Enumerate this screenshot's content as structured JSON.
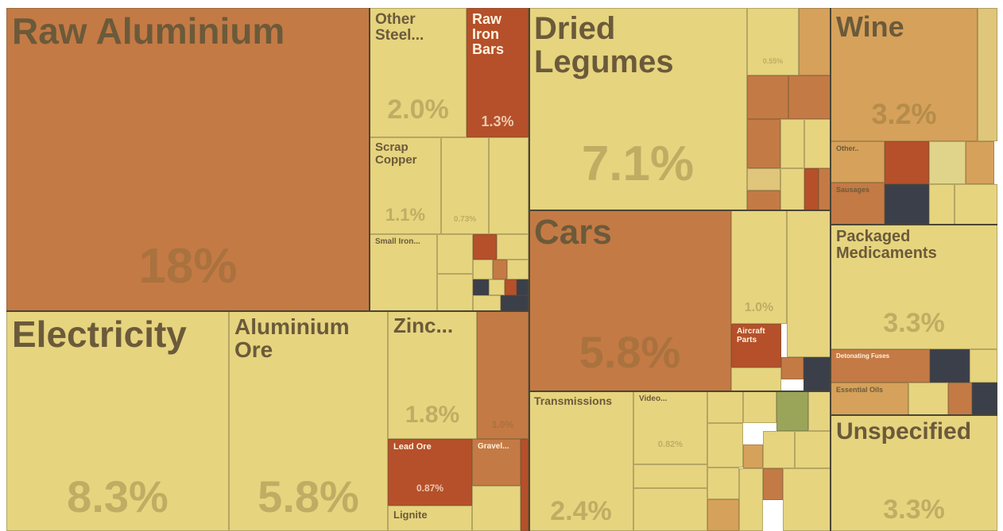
{
  "chart_data": {
    "type": "treemap",
    "categories": [
      "Raw Aluminium",
      "Other Steel...",
      "Raw Iron Bars",
      "Scrap Copper",
      null,
      "Small Iron...",
      "Electricity",
      "Aluminium Ore",
      "Zinc...",
      null,
      "Lead Ore",
      "Gravel...",
      "Lignite",
      "Dried Legumes",
      null,
      "Cars",
      null,
      "Aircraft Parts",
      "Transmissions",
      "Video...",
      "Wine",
      "Other..",
      "Sausages",
      "Packaged Medicaments",
      "Detonating Fuses",
      "Essential Oils",
      "Unspecified"
    ],
    "values": [
      18,
      2.0,
      1.3,
      1.1,
      0.73,
      null,
      8.3,
      5.8,
      1.8,
      1.0,
      0.87,
      null,
      null,
      7.1,
      0.55,
      5.8,
      1.0,
      null,
      2.4,
      0.82,
      3.2,
      null,
      null,
      3.3,
      null,
      null,
      3.3
    ],
    "value_labels": [
      "18%",
      "2.0%",
      "1.3%",
      "1.1%",
      "0.73%",
      null,
      "8.3%",
      "5.8%",
      "1.8%",
      "1.0%",
      "0.87%",
      null,
      null,
      "7.1%",
      "0.55%",
      "5.8%",
      "1.0%",
      null,
      "2.4%",
      "0.82%",
      "3.2%",
      null,
      null,
      "3.3%",
      null,
      null,
      "3.3%"
    ],
    "colors": [
      "#c47a45",
      "#e6d47f",
      "#b5502a",
      "#e6d47f",
      "#e6d47f",
      "#e6d47f",
      "#e6d47f",
      "#e6d47f",
      "#e6d47f",
      "#c47a45",
      "#b5502a",
      "#c47a45",
      "#e6d47f",
      "#e6d47f",
      "#e6d47f",
      "#c47a45",
      "#e6d47f",
      "#b5502a",
      "#e6d47f",
      "#e6d47f",
      "#d6a15a",
      "#d6a15a",
      "#c47a45",
      "#e6d47f",
      "#c47a45",
      "#d6a15a",
      "#e6d47f"
    ]
  }
}
